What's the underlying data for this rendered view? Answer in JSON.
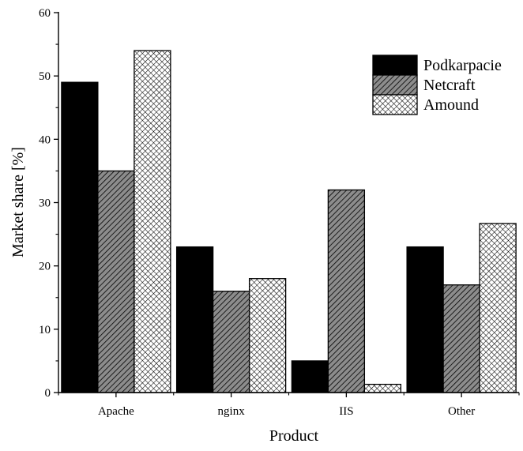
{
  "chart_data": {
    "type": "bar",
    "title": "",
    "xlabel": "Product",
    "ylabel": "Market share [%]",
    "categories": [
      "Apache",
      "nginx",
      "IIS",
      "Other"
    ],
    "ylim": [
      0,
      60
    ],
    "yticks": [
      0,
      10,
      20,
      30,
      40,
      50,
      60
    ],
    "grid": false,
    "legend_position": "top-right",
    "series": [
      {
        "name": "Podkarpacie",
        "values": [
          49,
          23,
          5,
          23
        ],
        "fill": "solid",
        "color": "#000000"
      },
      {
        "name": "Netcraft",
        "values": [
          35,
          16,
          32,
          17
        ],
        "fill": "diagonal-hatch",
        "color": "#8c8c8c"
      },
      {
        "name": "Amound",
        "values": [
          54,
          18,
          1.3,
          26.7
        ],
        "fill": "crosshatch",
        "color": "#ffffff"
      }
    ]
  }
}
